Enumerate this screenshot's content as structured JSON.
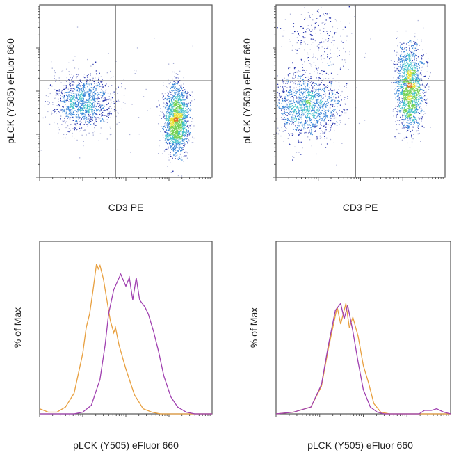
{
  "colors": {
    "axis": "#555555",
    "gate": "#666666",
    "orange": "#e8a040",
    "purple": "#a040b0",
    "density": [
      "#1c2aa8",
      "#2f7fd6",
      "#3cc0c8",
      "#70d050",
      "#e8e030",
      "#e07020"
    ]
  },
  "chart_data": [
    {
      "type": "scatter",
      "panel": "top-left",
      "xlabel": "CD3 PE",
      "ylabel": "pLCK (Y505) eFluor 660",
      "xscale": "log",
      "yscale": "log",
      "xlim": [
        0,
        1
      ],
      "ylim": [
        0,
        1
      ],
      "grid": false,
      "gates": {
        "x": 0.44,
        "y": 0.56
      },
      "clusters": [
        {
          "cx": 0.25,
          "cy": 0.44,
          "sx": 0.09,
          "sy": 0.08,
          "n": 1100
        },
        {
          "cx": 0.79,
          "cy": 0.33,
          "sx": 0.035,
          "sy": 0.1,
          "n": 1600
        },
        {
          "cx": 0.55,
          "cy": 0.4,
          "sx": 0.25,
          "sy": 0.2,
          "n": 60
        }
      ]
    },
    {
      "type": "scatter",
      "panel": "top-right",
      "xlabel": "CD3 PE",
      "ylabel": "pLCK (Y505) eFluor 660",
      "xscale": "log",
      "yscale": "log",
      "xlim": [
        0,
        1
      ],
      "ylim": [
        0,
        1
      ],
      "grid": false,
      "gates": {
        "x": 0.47,
        "y": 0.56
      },
      "clusters": [
        {
          "cx": 0.18,
          "cy": 0.42,
          "sx": 0.1,
          "sy": 0.09,
          "n": 1300
        },
        {
          "cx": 0.79,
          "cy": 0.52,
          "sx": 0.04,
          "sy": 0.12,
          "n": 1500
        },
        {
          "cx": 0.25,
          "cy": 0.8,
          "sx": 0.1,
          "sy": 0.12,
          "n": 250
        }
      ]
    },
    {
      "type": "line",
      "panel": "bottom-left",
      "xlabel": "pLCK (Y505) eFluor 660",
      "ylabel": "% of Max",
      "xscale": "log",
      "xlim": [
        0,
        1
      ],
      "ylim": [
        0,
        100
      ],
      "grid": false,
      "series": [
        {
          "color": "orange",
          "points": [
            [
              0,
              3
            ],
            [
              0.05,
              1
            ],
            [
              0.1,
              1
            ],
            [
              0.15,
              4
            ],
            [
              0.2,
              12
            ],
            [
              0.25,
              35
            ],
            [
              0.27,
              50
            ],
            [
              0.29,
              58
            ],
            [
              0.31,
              72
            ],
            [
              0.33,
              87
            ],
            [
              0.34,
              84
            ],
            [
              0.35,
              86
            ],
            [
              0.37,
              78
            ],
            [
              0.39,
              66
            ],
            [
              0.41,
              54
            ],
            [
              0.43,
              47
            ],
            [
              0.44,
              50
            ],
            [
              0.46,
              40
            ],
            [
              0.5,
              26
            ],
            [
              0.55,
              11
            ],
            [
              0.6,
              3
            ],
            [
              0.65,
              1
            ],
            [
              0.7,
              0
            ],
            [
              1,
              0
            ]
          ]
        },
        {
          "color": "purple",
          "points": [
            [
              0,
              0
            ],
            [
              0.2,
              0
            ],
            [
              0.25,
              1
            ],
            [
              0.3,
              5
            ],
            [
              0.35,
              20
            ],
            [
              0.38,
              40
            ],
            [
              0.4,
              58
            ],
            [
              0.43,
              72
            ],
            [
              0.47,
              81
            ],
            [
              0.5,
              74
            ],
            [
              0.52,
              79
            ],
            [
              0.54,
              66
            ],
            [
              0.56,
              79
            ],
            [
              0.58,
              66
            ],
            [
              0.61,
              62
            ],
            [
              0.63,
              58
            ],
            [
              0.66,
              48
            ],
            [
              0.69,
              36
            ],
            [
              0.72,
              22
            ],
            [
              0.76,
              10
            ],
            [
              0.8,
              4
            ],
            [
              0.85,
              1
            ],
            [
              0.9,
              0
            ],
            [
              1,
              0
            ]
          ]
        }
      ]
    },
    {
      "type": "line",
      "panel": "bottom-right",
      "xlabel": "pLCK (Y505) eFluor 660",
      "ylabel": "% of Max",
      "xscale": "log",
      "xlim": [
        0,
        1
      ],
      "ylim": [
        0,
        100
      ],
      "grid": false,
      "series": [
        {
          "color": "orange",
          "points": [
            [
              0,
              0
            ],
            [
              0.1,
              1
            ],
            [
              0.2,
              4
            ],
            [
              0.26,
              16
            ],
            [
              0.3,
              38
            ],
            [
              0.35,
              62
            ],
            [
              0.37,
              52
            ],
            [
              0.4,
              64
            ],
            [
              0.42,
              50
            ],
            [
              0.44,
              56
            ],
            [
              0.47,
              45
            ],
            [
              0.5,
              28
            ],
            [
              0.53,
              18
            ],
            [
              0.56,
              6
            ],
            [
              0.6,
              1
            ],
            [
              0.65,
              0
            ],
            [
              1,
              0
            ]
          ]
        },
        {
          "color": "purple",
          "points": [
            [
              0,
              0
            ],
            [
              0.1,
              1
            ],
            [
              0.2,
              4
            ],
            [
              0.26,
              17
            ],
            [
              0.3,
              40
            ],
            [
              0.34,
              60
            ],
            [
              0.37,
              64
            ],
            [
              0.39,
              55
            ],
            [
              0.41,
              63
            ],
            [
              0.44,
              48
            ],
            [
              0.47,
              30
            ],
            [
              0.5,
              14
            ],
            [
              0.54,
              4
            ],
            [
              0.58,
              1
            ],
            [
              0.62,
              0
            ],
            [
              0.82,
              0
            ],
            [
              0.85,
              2
            ],
            [
              0.89,
              2
            ],
            [
              0.92,
              3
            ],
            [
              0.96,
              1
            ],
            [
              1,
              0
            ]
          ]
        }
      ]
    }
  ]
}
